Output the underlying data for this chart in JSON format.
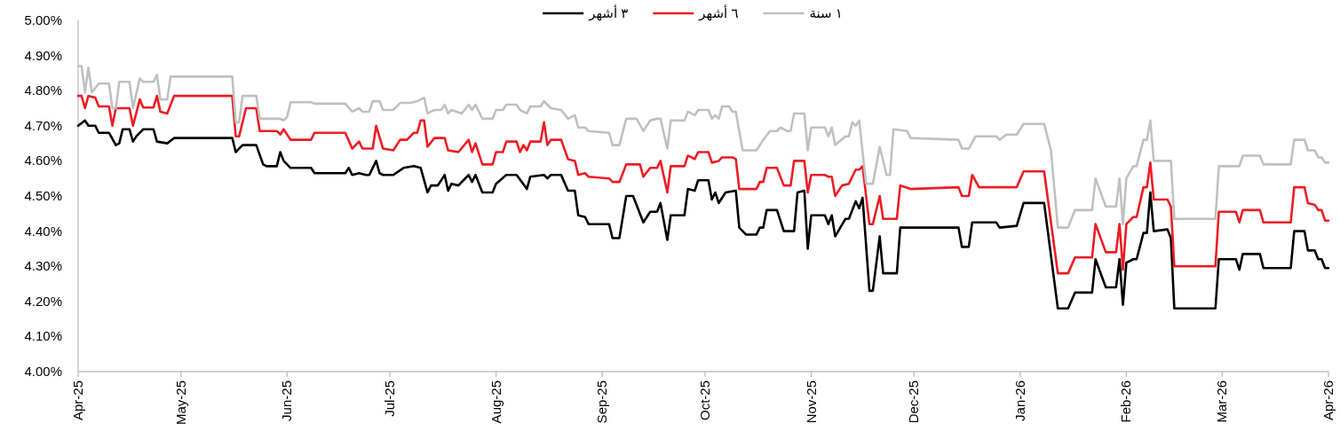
{
  "chart_data": {
    "type": "line",
    "xlim": [
      "2025-04-01",
      "2026-04-01"
    ],
    "ylim": [
      4.0,
      5.0
    ],
    "xticks": [
      {
        "value": "2025-04-01",
        "label": "Apr-25"
      },
      {
        "value": "2025-05-01",
        "label": "May-25"
      },
      {
        "value": "2025-06-01",
        "label": "Jun-25"
      },
      {
        "value": "2025-07-01",
        "label": "Jul-25"
      },
      {
        "value": "2025-08-01",
        "label": "Aug-25"
      },
      {
        "value": "2025-09-01",
        "label": "Sep-25"
      },
      {
        "value": "2025-10-01",
        "label": "Oct-25"
      },
      {
        "value": "2025-11-01",
        "label": "Nov-25"
      },
      {
        "value": "2025-12-01",
        "label": "Dec-25"
      },
      {
        "value": "2026-01-01",
        "label": "Jan-26"
      },
      {
        "value": "2026-02-01",
        "label": "Feb-26"
      },
      {
        "value": "2026-03-01",
        "label": "Mar-26"
      },
      {
        "value": "2026-04-01",
        "label": "Apr-26"
      }
    ],
    "yticks": [
      {
        "value": 4.0,
        "label": "4.00%"
      },
      {
        "value": 4.1,
        "label": "4.10%"
      },
      {
        "value": 4.2,
        "label": "4.20%"
      },
      {
        "value": 4.3,
        "label": "4.30%"
      },
      {
        "value": 4.4,
        "label": "4.40%"
      },
      {
        "value": 4.5,
        "label": "4.50%"
      },
      {
        "value": 4.6,
        "label": "4.60%"
      },
      {
        "value": 4.7,
        "label": "4.70%"
      },
      {
        "value": 4.8,
        "label": "4.80%"
      },
      {
        "value": 4.9,
        "label": "4.90%"
      },
      {
        "value": 5.0,
        "label": "5.00%"
      }
    ],
    "legend": "top",
    "series": [
      {
        "name": "٣ أشهر",
        "color": "#000000",
        "x": [
          "2025-04-01",
          "2025-04-03",
          "2025-04-04",
          "2025-04-06",
          "2025-04-07",
          "2025-04-10",
          "2025-04-12",
          "2025-04-13",
          "2025-04-14",
          "2025-04-16",
          "2025-04-17",
          "2025-04-18",
          "2025-04-20",
          "2025-04-23",
          "2025-04-24",
          "2025-04-27",
          "2025-04-29",
          "2025-05-16",
          "2025-05-17",
          "2025-05-19",
          "2025-05-23",
          "2025-05-25",
          "2025-05-26",
          "2025-05-29",
          "2025-05-30",
          "2025-05-31",
          "2025-06-02",
          "2025-06-08",
          "2025-06-09",
          "2025-06-18",
          "2025-06-19",
          "2025-06-20",
          "2025-06-22",
          "2025-06-24",
          "2025-06-25",
          "2025-06-27",
          "2025-06-28",
          "2025-06-29",
          "2025-07-02",
          "2025-07-05",
          "2025-07-08",
          "2025-07-10",
          "2025-07-12",
          "2025-07-13",
          "2025-07-15",
          "2025-07-17",
          "2025-07-18",
          "2025-07-19",
          "2025-07-21",
          "2025-07-24",
          "2025-07-25",
          "2025-07-26",
          "2025-07-28",
          "2025-07-31",
          "2025-08-01",
          "2025-08-04",
          "2025-08-07",
          "2025-08-10",
          "2025-08-11",
          "2025-08-15",
          "2025-08-16",
          "2025-08-17",
          "2025-08-20",
          "2025-08-22",
          "2025-08-24",
          "2025-08-25",
          "2025-08-27",
          "2025-08-28",
          "2025-09-03",
          "2025-09-04",
          "2025-09-06",
          "2025-09-08",
          "2025-09-10",
          "2025-09-13",
          "2025-09-15",
          "2025-09-17",
          "2025-09-18",
          "2025-09-20",
          "2025-09-21",
          "2025-09-25",
          "2025-09-26",
          "2025-09-28",
          "2025-09-29",
          "2025-10-02",
          "2025-10-03",
          "2025-10-04",
          "2025-10-05",
          "2025-10-07",
          "2025-10-10",
          "2025-10-11",
          "2025-10-13",
          "2025-10-16",
          "2025-10-17",
          "2025-10-18",
          "2025-10-19",
          "2025-10-22",
          "2025-10-24",
          "2025-10-27",
          "2025-10-28",
          "2025-10-30",
          "2025-10-31",
          "2025-11-01",
          "2025-11-05",
          "2025-11-06",
          "2025-11-07",
          "2025-11-08",
          "2025-11-11",
          "2025-11-12",
          "2025-11-14",
          "2025-11-15",
          "2025-11-16",
          "2025-11-18",
          "2025-11-19",
          "2025-11-21",
          "2025-11-22",
          "2025-11-26",
          "2025-11-27",
          "2025-12-14",
          "2025-12-15",
          "2025-12-17",
          "2025-12-18",
          "2025-12-25",
          "2025-12-26",
          "2025-12-31",
          "2026-01-02",
          "2026-01-08",
          "2026-01-12",
          "2026-01-15",
          "2026-01-17",
          "2026-01-22",
          "2026-01-23",
          "2026-01-26",
          "2026-01-29",
          "2026-01-30",
          "2026-01-31",
          "2026-02-01",
          "2026-02-03",
          "2026-02-04",
          "2026-02-06",
          "2026-02-07",
          "2026-02-08",
          "2026-02-09",
          "2026-02-13",
          "2026-02-14",
          "2026-02-15",
          "2026-02-27",
          "2026-02-28",
          "2026-03-05",
          "2026-03-06",
          "2026-03-07",
          "2026-03-12",
          "2026-03-13",
          "2026-03-21",
          "2026-03-22",
          "2026-03-25",
          "2026-03-26",
          "2026-03-28",
          "2026-03-29",
          "2026-03-30",
          "2026-03-31",
          "2026-04-01"
        ],
        "values": [
          4.7,
          4.715,
          4.7,
          4.7,
          4.68,
          4.68,
          4.645,
          4.65,
          4.69,
          4.69,
          4.655,
          4.67,
          4.69,
          4.69,
          4.655,
          4.65,
          4.665,
          4.665,
          4.625,
          4.645,
          4.645,
          4.59,
          4.585,
          4.585,
          4.625,
          4.6,
          4.58,
          4.58,
          4.565,
          4.565,
          4.58,
          4.56,
          4.565,
          4.56,
          4.56,
          4.6,
          4.565,
          4.56,
          4.56,
          4.58,
          4.585,
          4.58,
          4.51,
          4.53,
          4.53,
          4.56,
          4.515,
          4.535,
          4.53,
          4.56,
          4.54,
          4.56,
          4.51,
          4.51,
          4.535,
          4.56,
          4.56,
          4.52,
          4.555,
          4.56,
          4.55,
          4.56,
          4.56,
          4.515,
          4.515,
          4.445,
          4.44,
          4.42,
          4.42,
          4.38,
          4.38,
          4.5,
          4.5,
          4.425,
          4.455,
          4.455,
          4.48,
          4.375,
          4.445,
          4.445,
          4.52,
          4.515,
          4.545,
          4.545,
          4.49,
          4.51,
          4.48,
          4.51,
          4.515,
          4.41,
          4.39,
          4.39,
          4.41,
          4.41,
          4.46,
          4.46,
          4.4,
          4.4,
          4.51,
          4.515,
          4.35,
          4.445,
          4.445,
          4.42,
          4.445,
          4.385,
          4.435,
          4.435,
          4.485,
          4.465,
          4.495,
          4.23,
          4.23,
          4.385,
          4.28,
          4.28,
          4.41,
          4.41,
          4.355,
          4.355,
          4.425,
          4.425,
          4.41,
          4.415,
          4.48,
          4.48,
          4.18,
          4.18,
          4.225,
          4.225,
          4.32,
          4.24,
          4.24,
          4.32,
          4.19,
          4.31,
          4.32,
          4.32,
          4.395,
          4.395,
          4.51,
          4.4,
          4.405,
          4.38,
          4.18,
          4.18,
          4.32,
          4.32,
          4.29,
          4.335,
          4.335,
          4.295,
          4.295,
          4.4,
          4.4,
          4.345,
          4.345,
          4.32,
          4.32,
          4.295,
          4.295
        ]
      },
      {
        "name": "٦ أشهر",
        "color": "#ed1c24",
        "x": [
          "2025-04-01",
          "2025-04-02",
          "2025-04-03",
          "2025-04-04",
          "2025-04-06",
          "2025-04-07",
          "2025-04-10",
          "2025-04-11",
          "2025-04-12",
          "2025-04-16",
          "2025-04-17",
          "2025-04-19",
          "2025-04-20",
          "2025-04-23",
          "2025-04-24",
          "2025-04-25",
          "2025-04-27",
          "2025-04-29",
          "2025-05-16",
          "2025-05-17",
          "2025-05-18",
          "2025-05-20",
          "2025-05-23",
          "2025-05-24",
          "2025-05-29",
          "2025-05-30",
          "2025-05-31",
          "2025-06-02",
          "2025-06-08",
          "2025-06-09",
          "2025-06-18",
          "2025-06-20",
          "2025-06-22",
          "2025-06-23",
          "2025-06-26",
          "2025-06-27",
          "2025-06-29",
          "2025-07-02",
          "2025-07-04",
          "2025-07-06",
          "2025-07-08",
          "2025-07-09",
          "2025-07-10",
          "2025-07-11",
          "2025-07-12",
          "2025-07-14",
          "2025-07-17",
          "2025-07-18",
          "2025-07-21",
          "2025-07-24",
          "2025-07-25",
          "2025-07-26",
          "2025-07-28",
          "2025-07-31",
          "2025-08-01",
          "2025-08-03",
          "2025-08-04",
          "2025-08-07",
          "2025-08-08",
          "2025-08-09",
          "2025-08-10",
          "2025-08-11",
          "2025-08-14",
          "2025-08-15",
          "2025-08-16",
          "2025-08-17",
          "2025-08-20",
          "2025-08-22",
          "2025-08-24",
          "2025-08-25",
          "2025-08-27",
          "2025-08-28",
          "2025-09-03",
          "2025-09-04",
          "2025-09-06",
          "2025-09-08",
          "2025-09-12",
          "2025-09-13",
          "2025-09-15",
          "2025-09-17",
          "2025-09-18",
          "2025-09-20",
          "2025-09-21",
          "2025-09-25",
          "2025-09-26",
          "2025-09-28",
          "2025-09-29",
          "2025-10-02",
          "2025-10-03",
          "2025-10-05",
          "2025-10-06",
          "2025-10-09",
          "2025-10-10",
          "2025-10-11",
          "2025-10-13",
          "2025-10-16",
          "2025-10-17",
          "2025-10-18",
          "2025-10-19",
          "2025-10-22",
          "2025-10-24",
          "2025-10-26",
          "2025-10-27",
          "2025-10-30",
          "2025-10-31",
          "2025-11-01",
          "2025-11-05",
          "2025-11-06",
          "2025-11-07",
          "2025-11-08",
          "2025-11-10",
          "2025-11-12",
          "2025-11-14",
          "2025-11-15",
          "2025-11-16",
          "2025-11-18",
          "2025-11-19",
          "2025-11-21",
          "2025-11-22",
          "2025-11-26",
          "2025-11-27",
          "2025-11-30",
          "2025-12-14",
          "2025-12-15",
          "2025-12-17",
          "2025-12-18",
          "2025-12-20",
          "2025-12-31",
          "2026-01-02",
          "2026-01-08",
          "2026-01-12",
          "2026-01-15",
          "2026-01-17",
          "2026-01-22",
          "2026-01-23",
          "2026-01-26",
          "2026-01-29",
          "2026-01-30",
          "2026-01-31",
          "2026-02-01",
          "2026-02-03",
          "2026-02-04",
          "2026-02-06",
          "2026-02-07",
          "2026-02-08",
          "2026-02-09",
          "2026-02-13",
          "2026-02-14",
          "2026-02-15",
          "2026-02-27",
          "2026-02-28",
          "2026-03-05",
          "2026-03-06",
          "2026-03-07",
          "2026-03-12",
          "2026-03-13",
          "2026-03-21",
          "2026-03-22",
          "2026-03-25",
          "2026-03-26",
          "2026-03-28",
          "2026-03-29",
          "2026-03-30",
          "2026-03-31",
          "2026-04-01"
        ],
        "values": [
          4.785,
          4.785,
          4.75,
          4.785,
          4.78,
          4.755,
          4.755,
          4.7,
          4.75,
          4.75,
          4.7,
          4.775,
          4.752,
          4.752,
          4.785,
          4.74,
          4.735,
          4.785,
          4.785,
          4.67,
          4.67,
          4.75,
          4.75,
          4.685,
          4.685,
          4.675,
          4.69,
          4.66,
          4.66,
          4.68,
          4.68,
          4.635,
          4.655,
          4.635,
          4.635,
          4.7,
          4.635,
          4.63,
          4.66,
          4.66,
          4.68,
          4.68,
          4.715,
          4.715,
          4.64,
          4.665,
          4.665,
          4.63,
          4.625,
          4.66,
          4.625,
          4.65,
          4.59,
          4.59,
          4.625,
          4.625,
          4.655,
          4.655,
          4.625,
          4.645,
          4.63,
          4.655,
          4.655,
          4.71,
          4.645,
          4.66,
          4.66,
          4.605,
          4.6,
          4.56,
          4.565,
          4.555,
          4.55,
          4.54,
          4.54,
          4.59,
          4.59,
          4.555,
          4.58,
          4.58,
          4.6,
          4.51,
          4.585,
          4.585,
          4.615,
          4.605,
          4.625,
          4.625,
          4.595,
          4.6,
          4.61,
          4.61,
          4.605,
          4.52,
          4.52,
          4.52,
          4.54,
          4.54,
          4.58,
          4.58,
          4.53,
          4.53,
          4.6,
          4.6,
          4.51,
          4.56,
          4.56,
          4.555,
          4.555,
          4.5,
          4.53,
          4.535,
          4.575,
          4.575,
          4.585,
          4.42,
          4.42,
          4.5,
          4.435,
          4.435,
          4.53,
          4.52,
          4.525,
          4.5,
          4.5,
          4.56,
          4.525,
          4.525,
          4.57,
          4.57,
          4.28,
          4.28,
          4.325,
          4.325,
          4.42,
          4.34,
          4.34,
          4.42,
          4.29,
          4.42,
          4.44,
          4.44,
          4.525,
          4.525,
          4.595,
          4.49,
          4.49,
          4.47,
          4.3,
          4.3,
          4.455,
          4.455,
          4.425,
          4.46,
          4.46,
          4.425,
          4.425,
          4.525,
          4.525,
          4.48,
          4.475,
          4.46,
          4.46,
          4.43,
          4.43
        ]
      },
      {
        "name": "١ سنة",
        "color": "#c0c0c0",
        "x": [
          "2025-04-01",
          "2025-04-02",
          "2025-04-03",
          "2025-04-04",
          "2025-04-05",
          "2025-04-07",
          "2025-04-10",
          "2025-04-11",
          "2025-04-12",
          "2025-04-13",
          "2025-04-16",
          "2025-04-17",
          "2025-04-19",
          "2025-04-20",
          "2025-04-23",
          "2025-04-24",
          "2025-04-25",
          "2025-04-27",
          "2025-04-28",
          "2025-05-16",
          "2025-05-17",
          "2025-05-18",
          "2025-05-19",
          "2025-05-23",
          "2025-05-24",
          "2025-05-30",
          "2025-05-31",
          "2025-06-01",
          "2025-06-02",
          "2025-06-08",
          "2025-06-09",
          "2025-06-18",
          "2025-06-20",
          "2025-06-22",
          "2025-06-23",
          "2025-06-25",
          "2025-06-26",
          "2025-06-28",
          "2025-06-29",
          "2025-07-02",
          "2025-07-04",
          "2025-07-07",
          "2025-07-09",
          "2025-07-11",
          "2025-07-12",
          "2025-07-14",
          "2025-07-16",
          "2025-07-17",
          "2025-07-18",
          "2025-07-19",
          "2025-07-22",
          "2025-07-24",
          "2025-07-25",
          "2025-07-26",
          "2025-07-28",
          "2025-07-31",
          "2025-08-01",
          "2025-08-03",
          "2025-08-04",
          "2025-08-07",
          "2025-08-08",
          "2025-08-10",
          "2025-08-11",
          "2025-08-14",
          "2025-08-15",
          "2025-08-17",
          "2025-08-20",
          "2025-08-22",
          "2025-08-24",
          "2025-08-25",
          "2025-08-27",
          "2025-08-28",
          "2025-09-03",
          "2025-09-04",
          "2025-09-06",
          "2025-09-08",
          "2025-09-11",
          "2025-09-13",
          "2025-09-15",
          "2025-09-17",
          "2025-09-18",
          "2025-09-20",
          "2025-09-21",
          "2025-09-25",
          "2025-09-26",
          "2025-09-28",
          "2025-09-29",
          "2025-10-02",
          "2025-10-03",
          "2025-10-04",
          "2025-10-05",
          "2025-10-06",
          "2025-10-08",
          "2025-10-09",
          "2025-10-10",
          "2025-10-12",
          "2025-10-16",
          "2025-10-18",
          "2025-10-20",
          "2025-10-22",
          "2025-10-23",
          "2025-10-25",
          "2025-10-26",
          "2025-10-27",
          "2025-10-30",
          "2025-10-31",
          "2025-11-01",
          "2025-11-05",
          "2025-11-06",
          "2025-11-07",
          "2025-11-08",
          "2025-11-11",
          "2025-11-12",
          "2025-11-13",
          "2025-11-14",
          "2025-11-15",
          "2025-11-17",
          "2025-11-19",
          "2025-11-21",
          "2025-11-23",
          "2025-11-24",
          "2025-11-25",
          "2025-11-29",
          "2025-11-30",
          "2025-12-14",
          "2025-12-15",
          "2025-12-17",
          "2025-12-19",
          "2025-12-25",
          "2025-12-26",
          "2025-12-28",
          "2025-12-31",
          "2026-01-02",
          "2026-01-08",
          "2026-01-10",
          "2026-01-12",
          "2026-01-15",
          "2026-01-17",
          "2026-01-22",
          "2026-01-23",
          "2026-01-26",
          "2026-01-29",
          "2026-01-30",
          "2026-01-31",
          "2026-02-01",
          "2026-02-03",
          "2026-02-04",
          "2026-02-06",
          "2026-02-07",
          "2026-02-08",
          "2026-02-09",
          "2026-02-14",
          "2026-02-15",
          "2026-02-27",
          "2026-02-28",
          "2026-03-06",
          "2026-03-07",
          "2026-03-12",
          "2026-03-13",
          "2026-03-21",
          "2026-03-22",
          "2026-03-25",
          "2026-03-26",
          "2026-03-28",
          "2026-03-29",
          "2026-03-30",
          "2026-03-31",
          "2026-04-01"
        ],
        "values": [
          4.87,
          4.87,
          4.795,
          4.865,
          4.795,
          4.82,
          4.82,
          4.75,
          4.75,
          4.825,
          4.825,
          4.75,
          4.835,
          4.825,
          4.825,
          4.845,
          4.775,
          4.775,
          4.84,
          4.84,
          4.71,
          4.71,
          4.785,
          4.785,
          4.72,
          4.72,
          4.715,
          4.725,
          4.767,
          4.767,
          4.763,
          4.763,
          4.74,
          4.75,
          4.74,
          4.74,
          4.77,
          4.77,
          4.745,
          4.745,
          4.765,
          4.765,
          4.77,
          4.78,
          4.735,
          4.745,
          4.745,
          4.76,
          4.735,
          4.745,
          4.735,
          4.76,
          4.745,
          4.76,
          4.72,
          4.72,
          4.745,
          4.745,
          4.76,
          4.76,
          4.745,
          4.735,
          4.755,
          4.755,
          4.77,
          4.75,
          4.745,
          4.72,
          4.73,
          4.695,
          4.695,
          4.685,
          4.68,
          4.645,
          4.645,
          4.72,
          4.72,
          4.685,
          4.715,
          4.72,
          4.72,
          4.635,
          4.715,
          4.715,
          4.74,
          4.73,
          4.745,
          4.745,
          4.72,
          4.73,
          4.72,
          4.755,
          4.755,
          4.74,
          4.74,
          4.63,
          4.63,
          4.66,
          4.685,
          4.685,
          4.695,
          4.685,
          4.685,
          4.735,
          4.735,
          4.63,
          4.695,
          4.695,
          4.67,
          4.695,
          4.645,
          4.67,
          4.67,
          4.71,
          4.7,
          4.715,
          4.535,
          4.535,
          4.64,
          4.56,
          4.56,
          4.69,
          4.685,
          4.665,
          4.66,
          4.635,
          4.635,
          4.67,
          4.67,
          4.66,
          4.675,
          4.675,
          4.705,
          4.705,
          4.63,
          4.41,
          4.41,
          4.46,
          4.46,
          4.55,
          4.47,
          4.47,
          4.55,
          4.42,
          4.55,
          4.585,
          4.585,
          4.66,
          4.66,
          4.715,
          4.6,
          4.6,
          4.435,
          4.435,
          4.585,
          4.585,
          4.615,
          4.615,
          4.59,
          4.59,
          4.66,
          4.66,
          4.63,
          4.63,
          4.61,
          4.61,
          4.595,
          4.595
        ]
      }
    ]
  }
}
